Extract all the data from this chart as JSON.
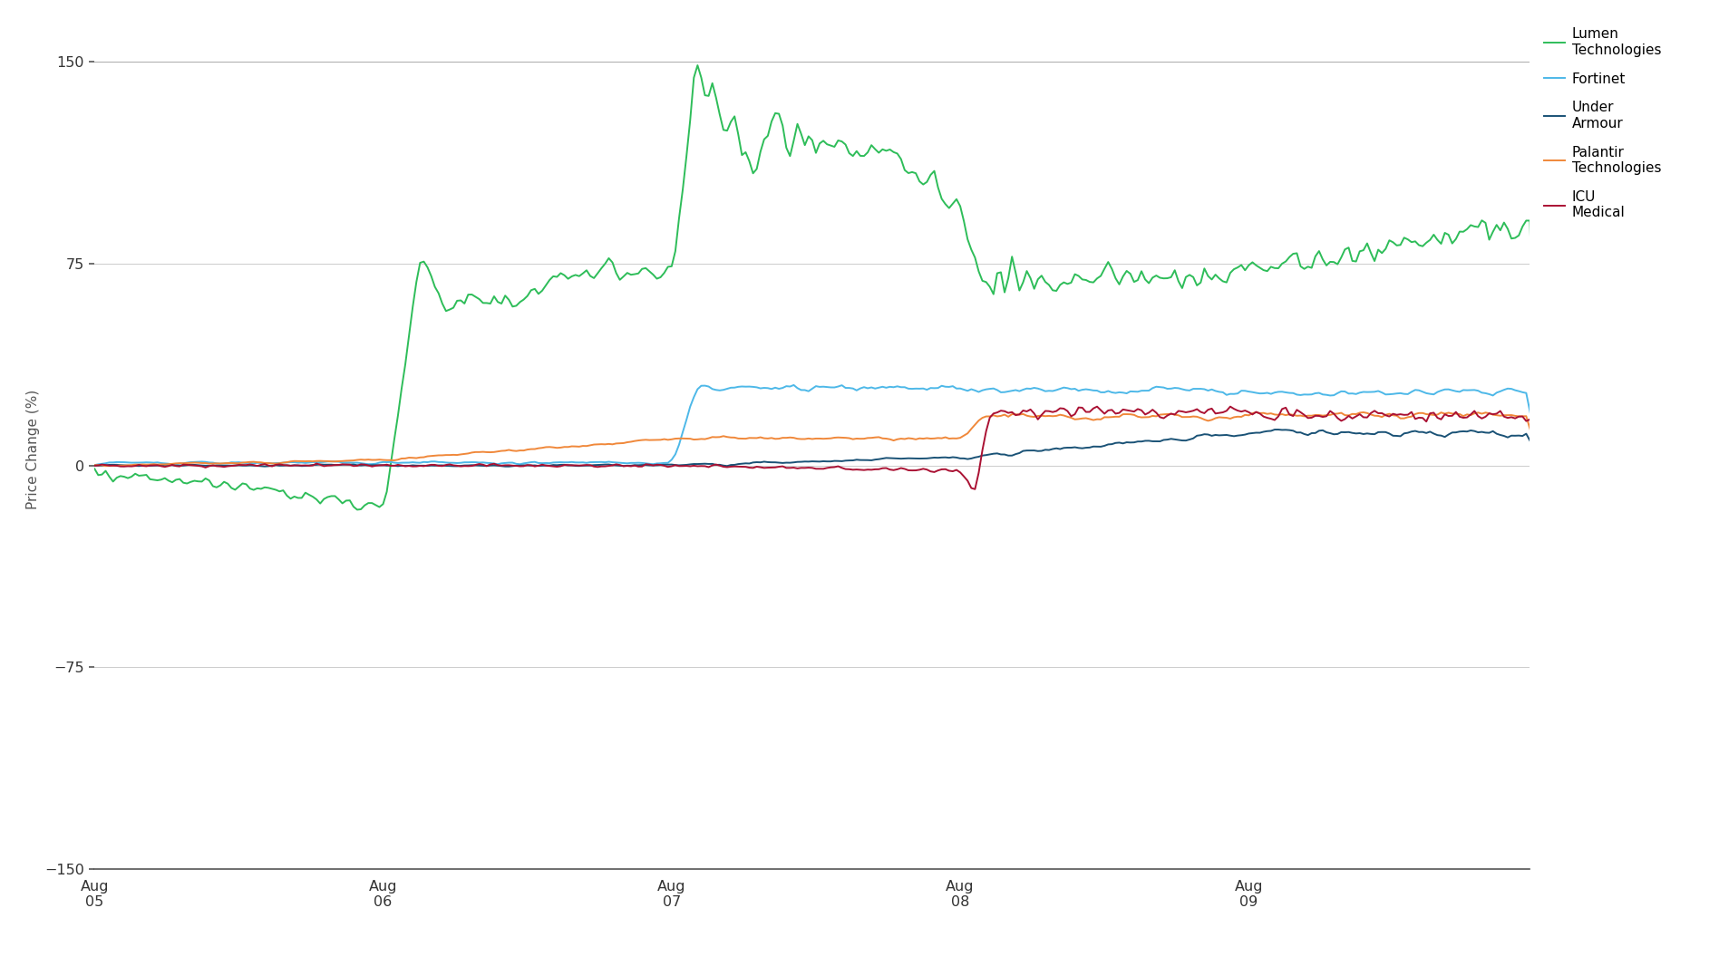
{
  "ylabel": "Price Change (%)",
  "yticks": [
    150,
    75,
    0,
    -75,
    -150
  ],
  "ylim": [
    -150,
    162
  ],
  "background_color": "#ffffff",
  "grid_color": "#cccccc",
  "top_border_color": "#aaaaaa",
  "bottom_border_color": "#555555",
  "series": [
    {
      "name": "Lumen\nTechnologies",
      "color": "#2ebd59",
      "linewidth": 1.4
    },
    {
      "name": "Fortinet",
      "color": "#4db8e8",
      "linewidth": 1.4
    },
    {
      "name": "Under\nArmour",
      "color": "#1a5276",
      "linewidth": 1.4
    },
    {
      "name": "Palantir\nTechnologies",
      "color": "#f0883a",
      "linewidth": 1.4
    },
    {
      "name": "ICU\nMedical",
      "color": "#aa1133",
      "linewidth": 1.4
    }
  ],
  "xtick_labels": [
    "Aug\n05",
    "Aug\n06",
    "Aug\n07",
    "Aug\n08",
    "Aug\n09"
  ],
  "n_points": 390,
  "day_boundaries": [
    0,
    78,
    156,
    234,
    312,
    389
  ]
}
